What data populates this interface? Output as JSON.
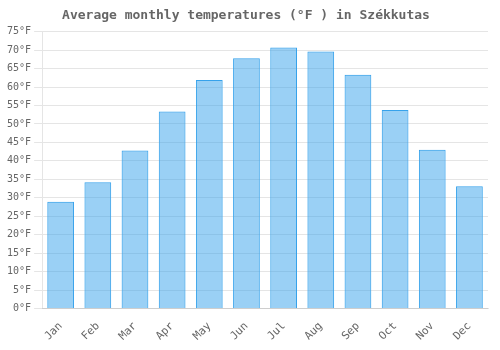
{
  "chart_data": {
    "type": "bar",
    "title": "Average monthly temperatures (°F ) in Székkutas",
    "categories": [
      "Jan",
      "Feb",
      "Mar",
      "Apr",
      "May",
      "Jun",
      "Jul",
      "Aug",
      "Sep",
      "Oct",
      "Nov",
      "Dec"
    ],
    "values": [
      28.9,
      34.2,
      42.8,
      53.4,
      61.9,
      67.8,
      70.7,
      69.6,
      63.3,
      53.8,
      43.0,
      33.1
    ],
    "ylim": [
      0,
      75
    ],
    "yticks": [
      {
        "value": 0,
        "label": "0°F"
      },
      {
        "value": 5,
        "label": "5°F"
      },
      {
        "value": 10,
        "label": "10°F"
      },
      {
        "value": 15,
        "label": "15°F"
      },
      {
        "value": 20,
        "label": "20°F"
      },
      {
        "value": 25,
        "label": "25°F"
      },
      {
        "value": 30,
        "label": "30°F"
      },
      {
        "value": 35,
        "label": "35°F"
      },
      {
        "value": 40,
        "label": "40°F"
      },
      {
        "value": 45,
        "label": "45°F"
      },
      {
        "value": 50,
        "label": "50°F"
      },
      {
        "value": 55,
        "label": "55°F"
      },
      {
        "value": 60,
        "label": "60°F"
      },
      {
        "value": 65,
        "label": "65°F"
      },
      {
        "value": 70,
        "label": "70°F"
      },
      {
        "value": 75,
        "label": "75°F"
      }
    ],
    "grid": true
  }
}
